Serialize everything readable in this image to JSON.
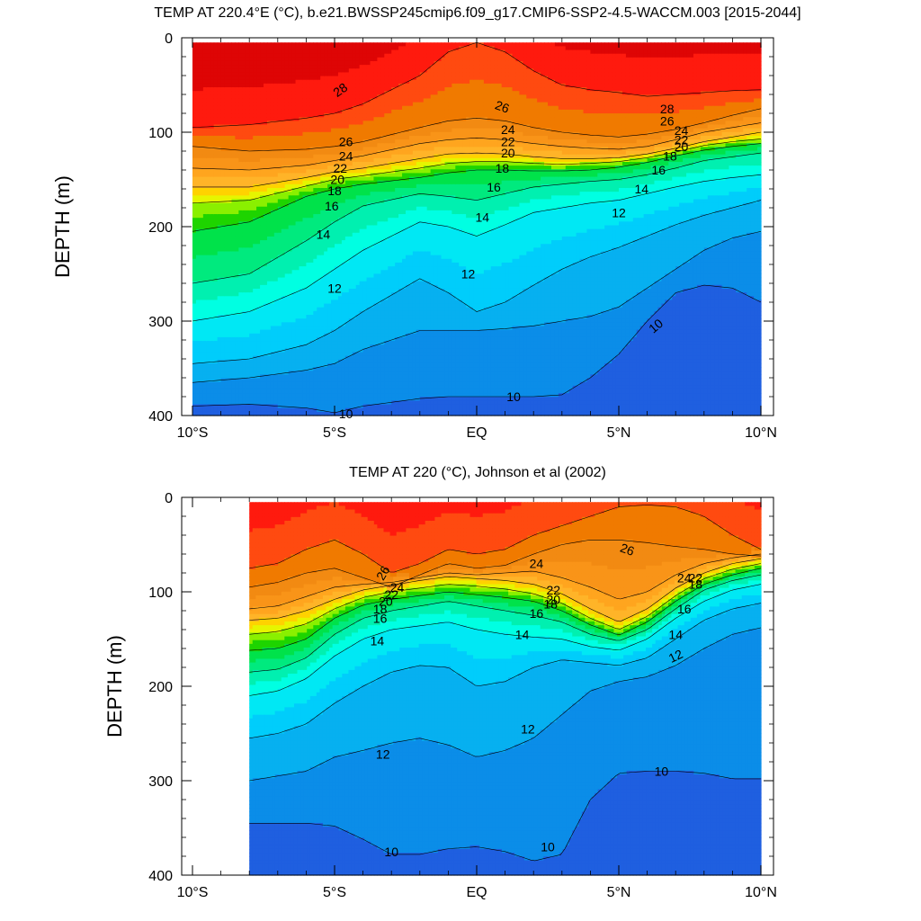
{
  "chart_data": [
    {
      "type": "contour",
      "title": "TEMP AT 220.4°E (°C), b.e21.BWSSP245cmip6.f09_g17.CMIP6-SSP2-4.5-WACCM.003 [2015-2044]",
      "ylabel": "DEPTH (m)",
      "xlabel": "",
      "xlim": [
        -10,
        10
      ],
      "ylim": [
        400,
        0
      ],
      "y_inverted": true,
      "x_ticks": [
        {
          "value": -10,
          "label": "10°S"
        },
        {
          "value": -5,
          "label": "5°S"
        },
        {
          "value": 0,
          "label": "EQ"
        },
        {
          "value": 5,
          "label": "5°N"
        },
        {
          "value": 10,
          "label": "10°N"
        }
      ],
      "y_ticks": [
        {
          "value": 0,
          "label": "0"
        },
        {
          "value": 100,
          "label": "100"
        },
        {
          "value": 200,
          "label": "200"
        },
        {
          "value": 300,
          "label": "300"
        },
        {
          "value": 400,
          "label": "400"
        }
      ],
      "contour_interval": 1,
      "data_x_range": [
        -10,
        10
      ],
      "data_y_range": [
        5,
        400
      ],
      "isotherm_depths": {
        "x": [
          -10,
          -8,
          -6,
          -5,
          -4,
          -2,
          -1,
          0,
          1,
          2,
          3,
          4,
          5,
          6,
          7,
          8,
          9,
          10
        ],
        "levels": [
          {
            "level": 28,
            "depths": [
              95,
              92,
              85,
              80,
              70,
              40,
              15,
              5,
              15,
              35,
              50,
              55,
              58,
              62,
              60,
              58,
              56,
              55
            ]
          },
          {
            "level": 26,
            "depths": [
              115,
              120,
              118,
              115,
              110,
              95,
              88,
              85,
              88,
              95,
              100,
              103,
              105,
              102,
              97,
              90,
              82,
              75
            ]
          },
          {
            "level": 24,
            "depths": [
              138,
              140,
              135,
              130,
              125,
              112,
              108,
              106,
              108,
              112,
              115,
              117,
              118,
              115,
              108,
              100,
              95,
              90
            ]
          },
          {
            "level": 22,
            "depths": [
              158,
              158,
              148,
              142,
              138,
              128,
              123,
              122,
              123,
              126,
              128,
              128,
              127,
              123,
              117,
              110,
              105,
              100
            ]
          },
          {
            "level": 20,
            "depths": [
              175,
              172,
              157,
              150,
              146,
              138,
              133,
              131,
              131,
              133,
              134,
              133,
              131,
              127,
              121,
              114,
              110,
              107
            ]
          },
          {
            "level": 18,
            "depths": [
              205,
              195,
              168,
              160,
              155,
              148,
              143,
              140,
              140,
              141,
              141,
              140,
              137,
              132,
              125,
              119,
              115,
              112
            ]
          },
          {
            "level": 16,
            "depths": [
              260,
              250,
              215,
              195,
              178,
              165,
              168,
              172,
              165,
              158,
              155,
              152,
              150,
              145,
              138,
              130,
              126,
              122
            ]
          },
          {
            "level": 14,
            "depths": [
              300,
              290,
              265,
              245,
              225,
              195,
              200,
              210,
              198,
              185,
              180,
              175,
              172,
              165,
              158,
              152,
              148,
              145
            ]
          },
          {
            "level": 12,
            "depths": [
              345,
              340,
              325,
              310,
              290,
              255,
              270,
              290,
              280,
              262,
              245,
              232,
              222,
              210,
              198,
              188,
              180,
              172
            ]
          },
          {
            "level": 11,
            "depths": [
              365,
              360,
              352,
              345,
              330,
              310,
              310,
              310,
              308,
              305,
              300,
              295,
              285,
              265,
              245,
              225,
              212,
              205
            ]
          },
          {
            "level": 10,
            "depths": [
              390,
              388,
              392,
              397,
              390,
              382,
              380,
              380,
              380,
              380,
              378,
              360,
              335,
              300,
              270,
              262,
              265,
              280
            ]
          }
        ]
      },
      "contour_labels": [
        {
          "value": "28",
          "x": -4.8,
          "y": 55,
          "angle": -35
        },
        {
          "value": "28",
          "x": 6.7,
          "y": 75
        },
        {
          "value": "26",
          "x": -4.6,
          "y": 110
        },
        {
          "value": "26",
          "x": 0.9,
          "y": 73,
          "angle": 20
        },
        {
          "value": "26",
          "x": 6.7,
          "y": 88
        },
        {
          "value": "24",
          "x": -4.6,
          "y": 125
        },
        {
          "value": "24",
          "x": 1.1,
          "y": 97
        },
        {
          "value": "24",
          "x": 7.2,
          "y": 98
        },
        {
          "value": "22",
          "x": -4.8,
          "y": 138
        },
        {
          "value": "22",
          "x": 1.1,
          "y": 110
        },
        {
          "value": "22",
          "x": 7.2,
          "y": 108
        },
        {
          "value": "20",
          "x": -4.9,
          "y": 150
        },
        {
          "value": "20",
          "x": 1.1,
          "y": 122
        },
        {
          "value": "20",
          "x": 7.2,
          "y": 115
        },
        {
          "value": "18",
          "x": -5.0,
          "y": 162
        },
        {
          "value": "18",
          "x": 0.9,
          "y": 138
        },
        {
          "value": "18",
          "x": 6.8,
          "y": 125
        },
        {
          "value": "16",
          "x": -5.1,
          "y": 178
        },
        {
          "value": "16",
          "x": 0.6,
          "y": 158
        },
        {
          "value": "16",
          "x": 6.4,
          "y": 140
        },
        {
          "value": "14",
          "x": -5.4,
          "y": 208
        },
        {
          "value": "14",
          "x": 0.2,
          "y": 190
        },
        {
          "value": "14",
          "x": 5.8,
          "y": 160
        },
        {
          "value": "12",
          "x": -5.0,
          "y": 265
        },
        {
          "value": "12",
          "x": -0.3,
          "y": 250
        },
        {
          "value": "12",
          "x": 5.0,
          "y": 185
        },
        {
          "value": "10",
          "x": -4.6,
          "y": 398
        },
        {
          "value": "10",
          "x": 1.3,
          "y": 380
        },
        {
          "value": "10",
          "x": 6.3,
          "y": 305,
          "angle": -40
        }
      ]
    },
    {
      "type": "contour",
      "title": "TEMP AT 220 (°C), Johnson et al (2002)",
      "ylabel": "DEPTH (m)",
      "xlabel": "",
      "xlim": [
        -10,
        10
      ],
      "ylim": [
        400,
        0
      ],
      "y_inverted": true,
      "x_ticks": [
        {
          "value": -10,
          "label": "10°S"
        },
        {
          "value": -5,
          "label": "5°S"
        },
        {
          "value": 0,
          "label": "EQ"
        },
        {
          "value": 5,
          "label": "5°N"
        },
        {
          "value": 10,
          "label": "10°N"
        }
      ],
      "y_ticks": [
        {
          "value": 0,
          "label": "0"
        },
        {
          "value": 100,
          "label": "100"
        },
        {
          "value": 200,
          "label": "200"
        },
        {
          "value": 300,
          "label": "300"
        },
        {
          "value": 400,
          "label": "400"
        }
      ],
      "contour_interval": 1,
      "data_x_range": [
        -8,
        10
      ],
      "data_y_range": [
        5,
        400
      ],
      "isotherm_depths": {
        "x": [
          -8,
          -7,
          -6,
          -5,
          -4,
          -3,
          -2,
          -1,
          0,
          1,
          2,
          3,
          4,
          5,
          6,
          7,
          8,
          9,
          10
        ],
        "levels": [
          {
            "level": 27,
            "depths": [
              75,
              70,
              55,
              45,
              60,
              80,
              70,
              55,
              60,
              55,
              40,
              30,
              20,
              10,
              8,
              10,
              20,
              40,
              55
            ]
          },
          {
            "level": 26,
            "depths": [
              95,
              90,
              80,
              75,
              85,
              95,
              82,
              70,
              75,
              72,
              60,
              50,
              45,
              45,
              48,
              52,
              55,
              60,
              62
            ]
          },
          {
            "level": 24,
            "depths": [
              118,
              115,
              105,
              95,
              92,
              90,
              85,
              80,
              82,
              80,
              78,
              85,
              95,
              108,
              100,
              82,
              70,
              64,
              60
            ]
          },
          {
            "level": 22,
            "depths": [
              130,
              128,
              120,
              108,
              98,
              93,
              88,
              84,
              86,
              88,
              92,
              102,
              118,
              132,
              118,
              96,
              80,
              70,
              65
            ]
          },
          {
            "level": 20,
            "depths": [
              145,
              142,
              134,
              118,
              106,
              100,
              96,
              92,
              94,
              97,
              102,
              112,
              128,
              140,
              126,
              104,
              86,
              76,
              70
            ]
          },
          {
            "level": 18,
            "depths": [
              162,
              160,
              150,
              128,
              114,
              108,
              104,
              100,
              103,
              106,
              110,
              120,
              135,
              146,
              132,
              110,
              92,
              82,
              75
            ]
          },
          {
            "level": 16,
            "depths": [
              185,
              182,
              170,
              145,
              128,
              120,
              115,
              110,
              115,
              120,
              125,
              132,
              145,
              152,
              140,
              118,
              98,
              88,
              82
            ]
          },
          {
            "level": 14,
            "depths": [
              210,
              205,
              192,
              168,
              150,
              140,
              136,
              132,
              140,
              145,
              148,
              150,
              158,
              162,
              150,
              128,
              110,
              98,
              92
            ]
          },
          {
            "level": 12,
            "depths": [
              255,
              250,
              240,
              218,
              200,
              185,
              178,
              180,
              200,
              195,
              180,
              172,
              175,
              178,
              170,
              150,
              130,
              118,
              112
            ]
          },
          {
            "level": 11,
            "depths": [
              300,
              295,
              290,
              275,
              268,
              260,
              255,
              262,
              275,
              268,
              255,
              230,
              205,
              195,
              190,
              178,
              160,
              145,
              138
            ]
          },
          {
            "level": 10,
            "depths": [
              345,
              345,
              345,
              348,
              362,
              378,
              378,
              372,
              370,
              375,
              385,
              378,
              320,
              292,
              290,
              290,
              292,
              298,
              298
            ]
          }
        ]
      },
      "contour_labels": [
        {
          "value": "26",
          "x": -3.3,
          "y": 80,
          "angle": -60
        },
        {
          "value": "26",
          "x": 5.3,
          "y": 55,
          "angle": 20
        },
        {
          "value": "24",
          "x": -2.8,
          "y": 95
        },
        {
          "value": "24",
          "x": 2.1,
          "y": 70
        },
        {
          "value": "24",
          "x": 7.3,
          "y": 85
        },
        {
          "value": "22",
          "x": -3.0,
          "y": 103
        },
        {
          "value": "22",
          "x": 2.7,
          "y": 98
        },
        {
          "value": "22",
          "x": 7.7,
          "y": 85
        },
        {
          "value": "20",
          "x": -3.2,
          "y": 110
        },
        {
          "value": "20",
          "x": 2.7,
          "y": 108
        },
        {
          "value": "18",
          "x": -3.4,
          "y": 118
        },
        {
          "value": "18",
          "x": 2.6,
          "y": 113
        },
        {
          "value": "18",
          "x": 7.7,
          "y": 92
        },
        {
          "value": "16",
          "x": -3.4,
          "y": 128
        },
        {
          "value": "16",
          "x": 2.1,
          "y": 123
        },
        {
          "value": "16",
          "x": 7.3,
          "y": 118
        },
        {
          "value": "14",
          "x": -3.5,
          "y": 152
        },
        {
          "value": "14",
          "x": 1.6,
          "y": 145
        },
        {
          "value": "14",
          "x": 7.0,
          "y": 145
        },
        {
          "value": "12",
          "x": -3.3,
          "y": 272
        },
        {
          "value": "12",
          "x": 1.8,
          "y": 245
        },
        {
          "value": "12",
          "x": 7.0,
          "y": 168,
          "angle": -25
        },
        {
          "value": "10",
          "x": -3.0,
          "y": 375
        },
        {
          "value": "10",
          "x": 2.5,
          "y": 370
        },
        {
          "value": "10",
          "x": 6.5,
          "y": 290
        }
      ]
    }
  ],
  "colormap": [
    {
      "min": -99,
      "max": 10,
      "color": "#1f5fe0"
    },
    {
      "min": 10,
      "max": 11,
      "color": "#0b8de8"
    },
    {
      "min": 11,
      "max": 12,
      "color": "#07b0f0"
    },
    {
      "min": 12,
      "max": 13,
      "color": "#00cdfb"
    },
    {
      "min": 13,
      "max": 14,
      "color": "#00e8f4"
    },
    {
      "min": 14,
      "max": 15,
      "color": "#00ffe2"
    },
    {
      "min": 15,
      "max": 16,
      "color": "#00f0b0"
    },
    {
      "min": 16,
      "max": 17,
      "color": "#00ea7e"
    },
    {
      "min": 17,
      "max": 18,
      "color": "#00e24a"
    },
    {
      "min": 18,
      "max": 19,
      "color": "#1ed400"
    },
    {
      "min": 19,
      "max": 20,
      "color": "#8af000"
    },
    {
      "min": 20,
      "max": 21,
      "color": "#e6f500"
    },
    {
      "min": 21,
      "max": 22,
      "color": "#ffd200"
    },
    {
      "min": 22,
      "max": 23,
      "color": "#ffb428"
    },
    {
      "min": 23,
      "max": 24,
      "color": "#ffa51e"
    },
    {
      "min": 24,
      "max": 25,
      "color": "#f99418"
    },
    {
      "min": 25,
      "max": 26,
      "color": "#f28a12"
    },
    {
      "min": 26,
      "max": 27,
      "color": "#f07a00"
    },
    {
      "min": 27,
      "max": 28,
      "color": "#ff4a10"
    },
    {
      "min": 28,
      "max": 29,
      "color": "#ff1a0e"
    },
    {
      "min": 29,
      "max": 99,
      "color": "#de0505"
    }
  ]
}
